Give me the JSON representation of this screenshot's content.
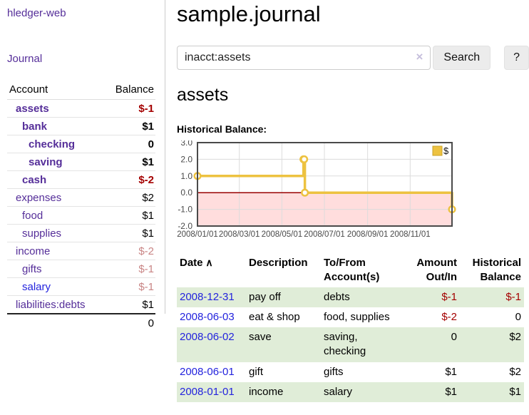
{
  "sidebar": {
    "app_title": "hledger-web",
    "nav": {
      "journal": "Journal"
    },
    "accounts_table": {
      "headers": {
        "account": "Account",
        "balance": "Balance"
      },
      "rows": [
        {
          "name": "assets",
          "depth": 1,
          "bold": true,
          "blue": false,
          "balance": "$-1",
          "balance_class": "neg-strong"
        },
        {
          "name": "bank",
          "depth": 2,
          "bold": true,
          "blue": false,
          "balance": "$1",
          "balance_class": ""
        },
        {
          "name": "checking",
          "depth": 3,
          "bold": true,
          "blue": false,
          "balance": "0",
          "balance_class": ""
        },
        {
          "name": "saving",
          "depth": 3,
          "bold": true,
          "blue": false,
          "balance": "$1",
          "balance_class": ""
        },
        {
          "name": "cash",
          "depth": 2,
          "bold": true,
          "blue": false,
          "balance": "$-2",
          "balance_class": "neg-strong"
        },
        {
          "name": "expenses",
          "depth": 1,
          "bold": false,
          "blue": false,
          "balance": "$2",
          "balance_class": ""
        },
        {
          "name": "food",
          "depth": 2,
          "bold": false,
          "blue": false,
          "balance": "$1",
          "balance_class": ""
        },
        {
          "name": "supplies",
          "depth": 2,
          "bold": false,
          "blue": false,
          "balance": "$1",
          "balance_class": ""
        },
        {
          "name": "income",
          "depth": 1,
          "bold": false,
          "blue": false,
          "balance": "$-2",
          "balance_class": "neg-muted"
        },
        {
          "name": "gifts",
          "depth": 2,
          "bold": false,
          "blue": false,
          "balance": "$-1",
          "balance_class": "neg-muted"
        },
        {
          "name": "salary",
          "depth": 2,
          "bold": false,
          "blue": true,
          "balance": "$-1",
          "balance_class": "neg-muted"
        },
        {
          "name": "liabilities:debts",
          "depth": 1,
          "bold": false,
          "blue": false,
          "balance": "$1",
          "balance_class": ""
        }
      ],
      "total": "0"
    }
  },
  "main": {
    "title": "sample.journal",
    "search": {
      "value": "inacct:assets",
      "clear_icon": "×",
      "button_label": "Search",
      "help_label": "?"
    },
    "account_heading": "assets"
  },
  "chart_data": {
    "type": "line",
    "title": "Historical Balance:",
    "legend": [
      {
        "label": "$",
        "color": "#edc240"
      }
    ],
    "step": true,
    "x_ticks": [
      "2008/01/01",
      "2008/03/01",
      "2008/05/01",
      "2008/07/01",
      "2008/09/01",
      "2008/11/01"
    ],
    "y_ticks": [
      3.0,
      2.0,
      1.0,
      0.0,
      -1.0,
      -2.0
    ],
    "xlim": [
      "2008-01-01",
      "2008-12-31"
    ],
    "ylim": [
      -2,
      3
    ],
    "points": [
      {
        "date": "2008-01-01",
        "value": 1
      },
      {
        "date": "2008-06-01",
        "value": 2
      },
      {
        "date": "2008-06-02",
        "value": 2
      },
      {
        "date": "2008-06-03",
        "value": 0
      },
      {
        "date": "2008-12-31",
        "value": -1
      }
    ],
    "series_color": "#edc240",
    "marker_fill": "#ffffff",
    "negative_region_color": "#ffdddd",
    "zero_line_color": "#990000",
    "grid_color": "#dcdcdc",
    "border_color": "#4a4a4a",
    "legend_position": "top-right",
    "grid": true
  },
  "register": {
    "sort_icon": "∧",
    "columns": [
      {
        "label": [
          "Date"
        ],
        "align": "left",
        "width_class": "w-date",
        "sortable": true
      },
      {
        "label": [
          "Description"
        ],
        "align": "left",
        "width_class": "w-desc"
      },
      {
        "label": [
          "To/From",
          "Account(s)"
        ],
        "align": "left",
        "width_class": "w-acct"
      },
      {
        "label": [
          "Amount",
          "Out/In"
        ],
        "align": "right",
        "width_class": "w-amt"
      },
      {
        "label": [
          "Historical",
          "Balance"
        ],
        "align": "right",
        "width_class": "w-bal"
      }
    ],
    "rows": [
      {
        "date": "2008-12-31",
        "description": "pay off",
        "accounts": "debts",
        "amount": "$-1",
        "amount_neg": true,
        "balance": "$-1",
        "balance_neg": true,
        "shaded": true
      },
      {
        "date": "2008-06-03",
        "description": "eat & shop",
        "accounts": "food, supplies",
        "amount": "$-2",
        "amount_neg": true,
        "balance": "0",
        "balance_neg": false,
        "shaded": false
      },
      {
        "date": "2008-06-02",
        "description": "save",
        "accounts": "saving, checking",
        "amount": "0",
        "amount_neg": false,
        "balance": "$2",
        "balance_neg": false,
        "shaded": true
      },
      {
        "date": "2008-06-01",
        "description": "gift",
        "accounts": "gifts",
        "amount": "$1",
        "amount_neg": false,
        "balance": "$2",
        "balance_neg": false,
        "shaded": false
      },
      {
        "date": "2008-01-01",
        "description": "income",
        "accounts": "salary",
        "amount": "$1",
        "amount_neg": false,
        "balance": "$1",
        "balance_neg": false,
        "shaded": true
      }
    ]
  }
}
